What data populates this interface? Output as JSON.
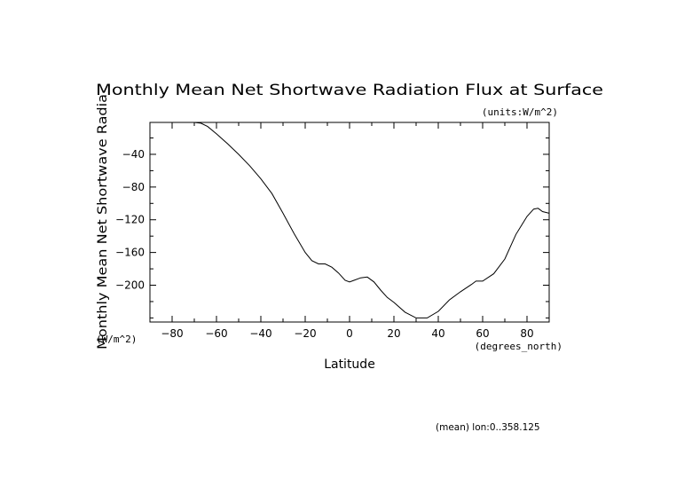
{
  "chart_data": {
    "type": "line",
    "title": "Monthly Mean Net Shortwave Radiation Flux at Surface",
    "units_label": "(units:W/m^2)",
    "xlabel": "Latitude",
    "x_units": "(degrees_north)",
    "ylabel": "Monthly Mean Net Shortwave Radia",
    "y_units": "(W/m^2)",
    "footnote": "(mean) lon:0..358.125",
    "xlim": [
      -90,
      90
    ],
    "ylim": [
      -245,
      -1
    ],
    "x_ticks": [
      -80,
      -60,
      -40,
      -20,
      0,
      20,
      40,
      60,
      80
    ],
    "y_ticks": [
      -40,
      -80,
      -120,
      -160,
      -200
    ],
    "x": [
      -75,
      -70,
      -67,
      -64,
      -60,
      -55,
      -50,
      -45,
      -40,
      -35,
      -30,
      -25,
      -20,
      -17,
      -14,
      -11,
      -8,
      -5,
      -2,
      0,
      2,
      5,
      8,
      11,
      14,
      17,
      20,
      25,
      30,
      35,
      40,
      45,
      50,
      55,
      57,
      60,
      65,
      70,
      75,
      80,
      83,
      85,
      87,
      90
    ],
    "y": [
      -1,
      -1,
      -2,
      -6,
      -15,
      -27,
      -40,
      -54,
      -70,
      -88,
      -112,
      -137,
      -160,
      -170,
      -174,
      -174,
      -178,
      -185,
      -194,
      -196,
      -194,
      -191,
      -190,
      -196,
      -206,
      -215,
      -221,
      -233,
      -240,
      -240,
      -232,
      -218,
      -208,
      -199,
      -195,
      -195,
      -186,
      -168,
      -138,
      -116,
      -107,
      -106,
      -110,
      -112
    ]
  }
}
